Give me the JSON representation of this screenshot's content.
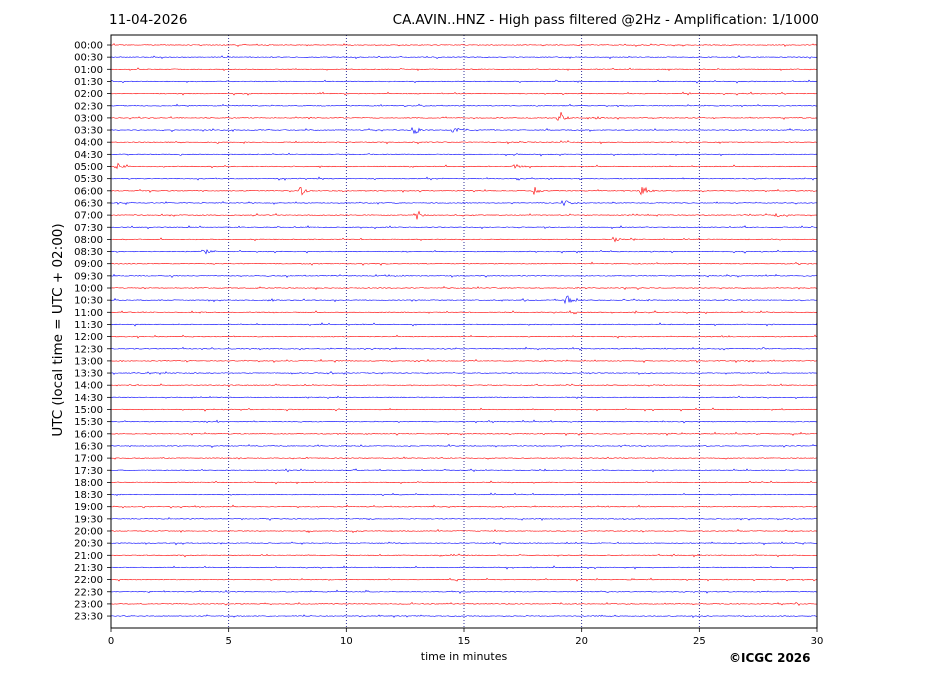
{
  "header": {
    "date": "11-04-2026",
    "title": "CA.AVIN..HNZ - High pass filtered @2Hz - Amplification: 1/1000"
  },
  "copyright": "©ICGC 2026",
  "colors": {
    "red": "#ff0000",
    "blue": "#0000ff",
    "grid": "#000080"
  },
  "chart_data": {
    "type": "line",
    "xlabel": "time in minutes",
    "ylabel": "UTC (local time = UTC + 02:00)",
    "xlim": [
      0,
      30
    ],
    "xticks": [
      0,
      5,
      10,
      15,
      20,
      25,
      30
    ],
    "grid": "vertical dotted at 5-minute ticks",
    "rows": [
      "00:00",
      "00:30",
      "01:00",
      "01:30",
      "02:00",
      "02:30",
      "03:00",
      "03:30",
      "04:00",
      "04:30",
      "05:00",
      "05:30",
      "06:00",
      "06:30",
      "07:00",
      "07:30",
      "08:00",
      "08:30",
      "09:00",
      "09:30",
      "10:00",
      "10:30",
      "11:00",
      "11:30",
      "12:00",
      "12:30",
      "13:00",
      "13:30",
      "14:00",
      "14:30",
      "15:00",
      "15:30",
      "16:00",
      "16:30",
      "17:00",
      "17:30",
      "18:00",
      "18:30",
      "19:00",
      "19:30",
      "20:00",
      "20:30",
      "21:00",
      "21:30",
      "22:00",
      "22:30",
      "23:00",
      "23:30"
    ],
    "row_colors_cycle": [
      "red",
      "blue"
    ],
    "events": [
      {
        "row": "03:00",
        "minute": 19.1,
        "amplitude": 6
      },
      {
        "row": "03:00",
        "minute": 20.6,
        "amplitude": 2
      },
      {
        "row": "03:30",
        "minute": 12.9,
        "amplitude": 5
      },
      {
        "row": "03:30",
        "minute": 14.6,
        "amplitude": 3
      },
      {
        "row": "05:00",
        "minute": 0.3,
        "amplitude": 3
      },
      {
        "row": "05:00",
        "minute": 17.2,
        "amplitude": 3
      },
      {
        "row": "06:00",
        "minute": 8.1,
        "amplitude": 5
      },
      {
        "row": "06:00",
        "minute": 18.0,
        "amplitude": 4
      },
      {
        "row": "06:00",
        "minute": 22.6,
        "amplitude": 6
      },
      {
        "row": "06:30",
        "minute": 19.3,
        "amplitude": 4
      },
      {
        "row": "07:00",
        "minute": 13.0,
        "amplitude": 6
      },
      {
        "row": "07:00",
        "minute": 28.3,
        "amplitude": 2
      },
      {
        "row": "08:00",
        "minute": 21.4,
        "amplitude": 3
      },
      {
        "row": "08:30",
        "minute": 4.0,
        "amplitude": 3
      },
      {
        "row": "10:30",
        "minute": 19.4,
        "amplitude": 5
      },
      {
        "row": "10:30",
        "minute": 6.8,
        "amplitude": 2
      }
    ]
  }
}
